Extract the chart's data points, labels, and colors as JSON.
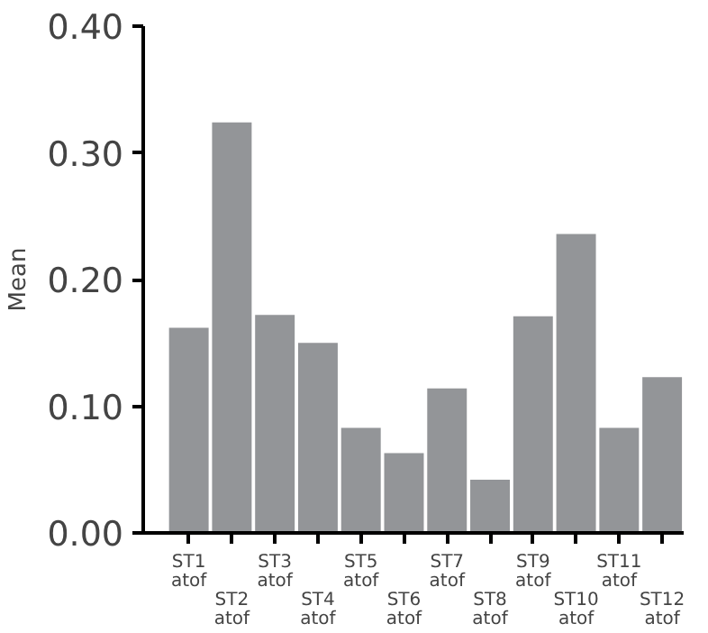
{
  "chart_data": {
    "type": "bar",
    "ylabel": "Mean",
    "categories": [
      "ST1\natof",
      "ST2\natof",
      "ST3\natof",
      "ST4\natof",
      "ST5\natof",
      "ST6\natof",
      "ST7\natof",
      "ST8\natof",
      "ST9\natof",
      "ST10\natof",
      "ST11\natof",
      "ST12\natof"
    ],
    "values": [
      0.162,
      0.324,
      0.172,
      0.15,
      0.083,
      0.063,
      0.114,
      0.042,
      0.171,
      0.236,
      0.083,
      0.123
    ],
    "color": "#939598",
    "ylim": [
      0,
      0.4
    ],
    "yticks": [
      {
        "value": 0,
        "label": "0.00"
      },
      {
        "value": 0.1,
        "label": "0.10"
      },
      {
        "value": 0.2,
        "label": "0.20"
      },
      {
        "value": 0.3,
        "label": "0.30"
      },
      {
        "value": 0.4,
        "label": "0.40"
      }
    ],
    "grid": false
  }
}
